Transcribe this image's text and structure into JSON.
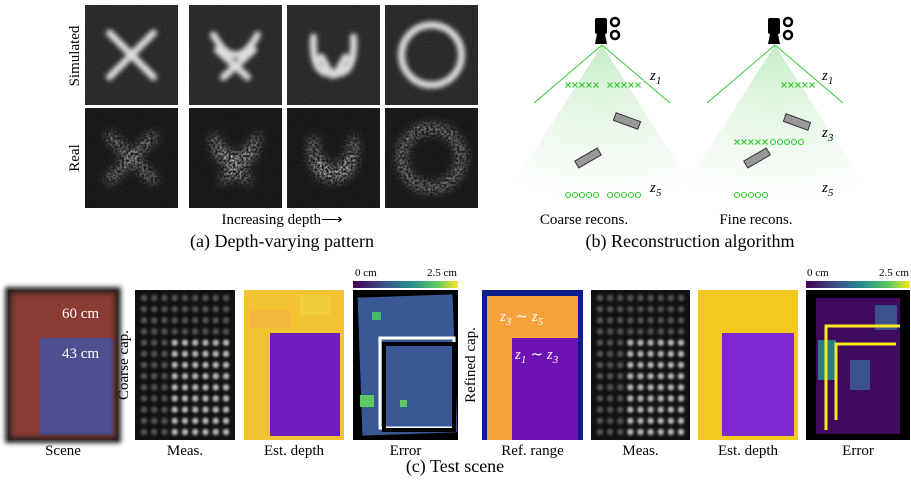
{
  "panel_a": {
    "row_labels": [
      "Simulated",
      "Real"
    ],
    "axis_label": "Increasing depth⟶",
    "caption": "(a) Depth-varying pattern"
  },
  "panel_b": {
    "z_labels": [
      {
        "base": "z",
        "sub": "1"
      },
      {
        "base": "z",
        "sub": "5"
      },
      {
        "base": "z",
        "sub": "1"
      },
      {
        "base": "z",
        "sub": "3"
      },
      {
        "base": "z",
        "sub": "5"
      }
    ],
    "captions": [
      "Coarse recons.",
      "Fine recons."
    ],
    "caption": "(b) Reconstruction algorithm"
  },
  "panel_c": {
    "scene_labels": [
      "60 cm",
      "43 cm"
    ],
    "row_labels": [
      "Coarse cap.",
      "Refined cap."
    ],
    "colorbars": [
      [
        "0 cm",
        "2.5 cm"
      ],
      [
        "0 cm",
        "2.5 cm"
      ]
    ],
    "range_labels": [
      {
        "from": "z",
        "from_sub": "3",
        "sep": "∼",
        "to": "z",
        "to_sub": "5"
      },
      {
        "from": "z",
        "from_sub": "1",
        "sep": "∼",
        "to": "z",
        "to_sub": "3"
      }
    ],
    "image_labels": [
      "Scene",
      "Meas.",
      "Est. depth",
      "Error",
      "Ref. range",
      "Meas.",
      "Est. depth",
      "Error"
    ],
    "caption": "(c) Test scene"
  }
}
